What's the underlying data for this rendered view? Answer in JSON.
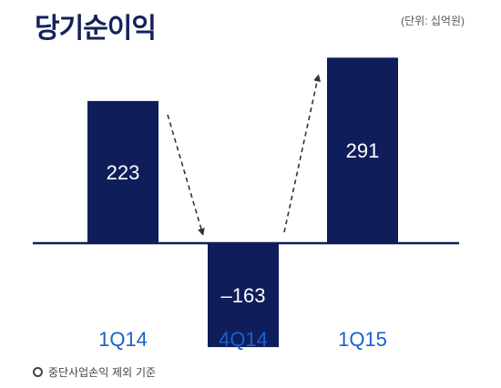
{
  "title": "당기순이익",
  "unit_note": "(단위: 십억원)",
  "footnote": "중단사업손익 제외 기준",
  "colors": {
    "bar": "#0f1e5a",
    "axis": "#0f1e5a",
    "category_label": "#1a5fd0",
    "bar_label": "#ffffff",
    "arrow": "#333333"
  },
  "chart_data": {
    "type": "bar",
    "categories": [
      "1Q14",
      "4Q14",
      "1Q15"
    ],
    "values": [
      223,
      -163,
      291
    ],
    "value_labels": [
      "223",
      "–163",
      "291"
    ],
    "annotations": [
      "dashed arrow from 1Q14 down to 4Q14",
      "dashed arrow from 4Q14 up to 1Q15"
    ],
    "title": "당기순이익",
    "xlabel": "",
    "ylabel": "",
    "grid": false,
    "legend": "none"
  }
}
